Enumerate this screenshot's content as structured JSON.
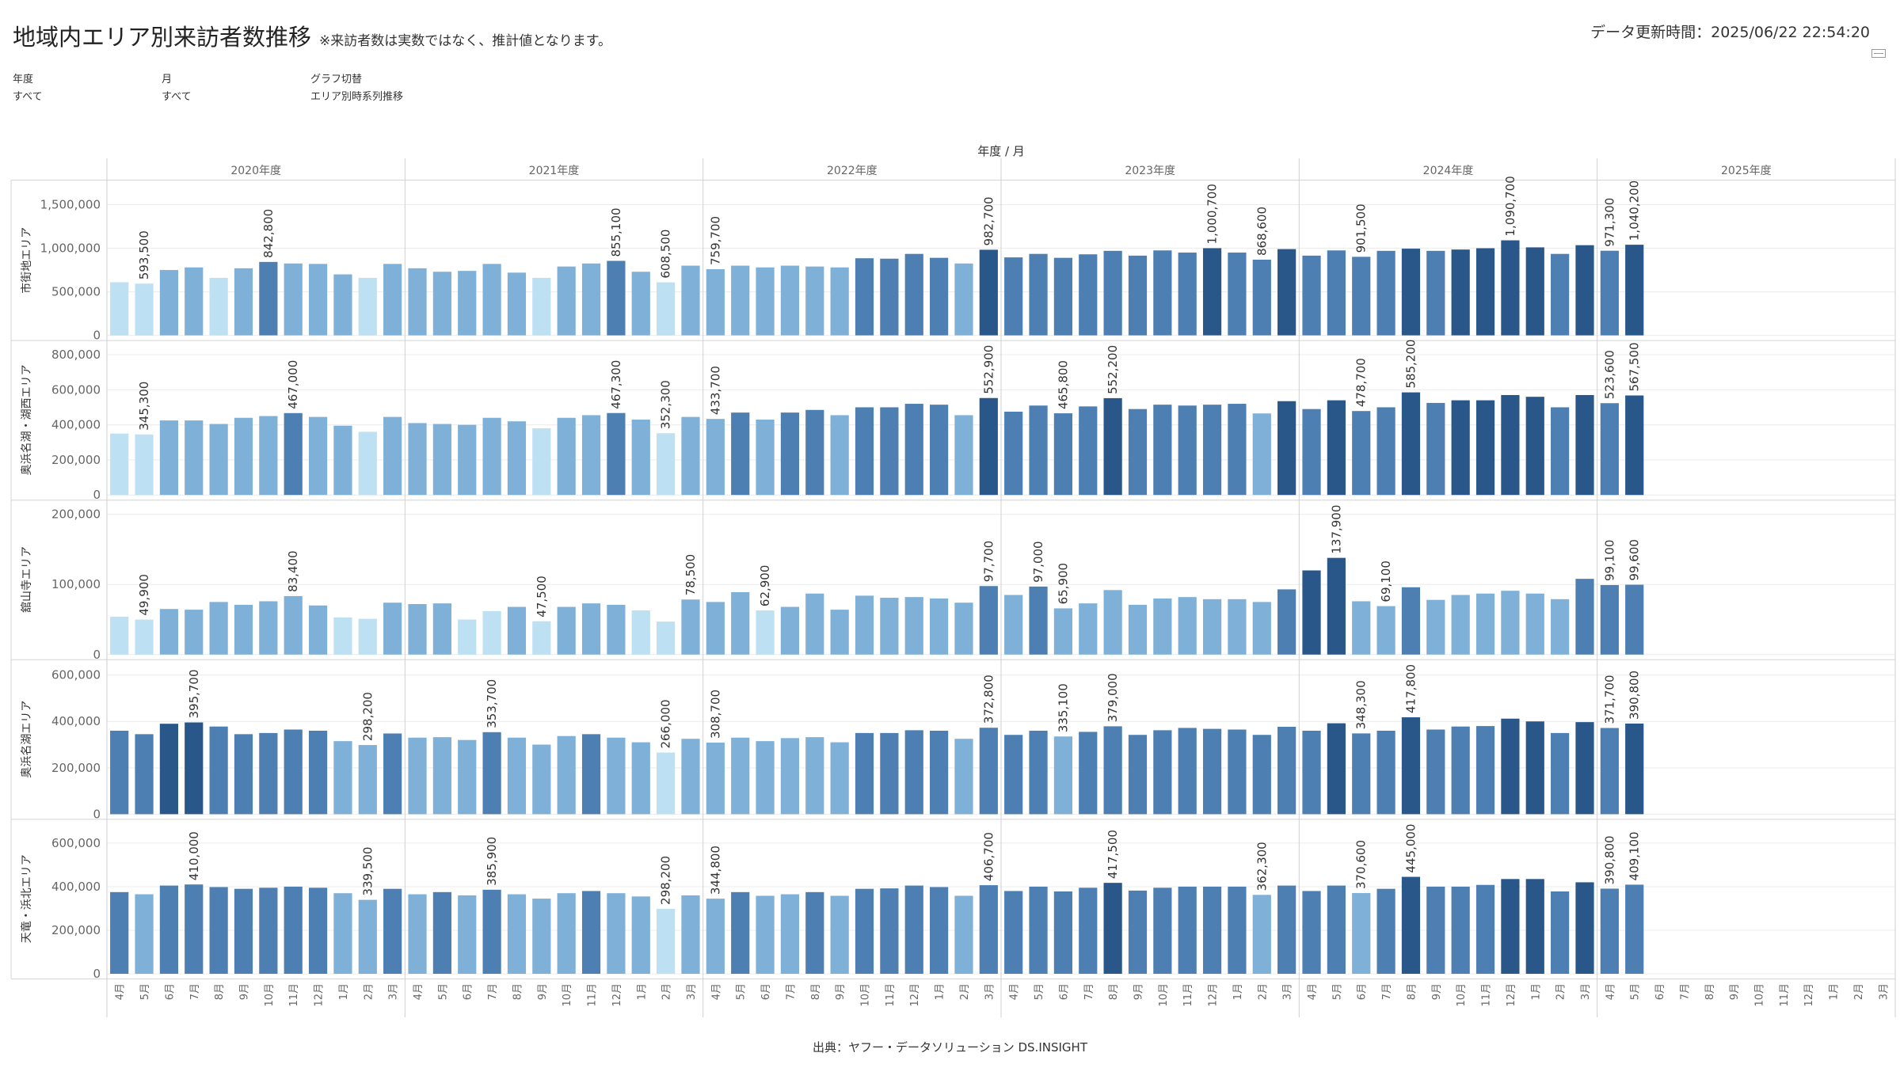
{
  "title": "地域内エリア別来訪者数推移",
  "title_note": "※来訪者数は実数ではなく、推計値となります。",
  "updated": "データ更新時間：2025/06/22 22:54:20",
  "filters": [
    {
      "label": "年度",
      "value": "すべて"
    },
    {
      "label": "月",
      "value": "すべて"
    },
    {
      "label": "グラフ切替",
      "value": "エリア別時系列推移"
    }
  ],
  "source": "出典：ヤフー・データソリューション DS.INSIGHT",
  "chart_data": {
    "type": "bar",
    "header": "年度 / 月",
    "fiscal_years": [
      "2020年度",
      "2021年度",
      "2022年度",
      "2023年度",
      "2024年度",
      "2025年度"
    ],
    "months": [
      "4月",
      "5月",
      "6月",
      "7月",
      "8月",
      "9月",
      "10月",
      "11月",
      "12月",
      "1月",
      "2月",
      "3月"
    ],
    "color_scale": [
      "#bde0f3",
      "#7fb0d7",
      "#4d7fb2",
      "#2a5789"
    ],
    "grid": true,
    "series": [
      {
        "name": "市街地エリア",
        "ylim": [
          0,
          1650000
        ],
        "ticks": [
          {
            "v": 0,
            "t": "0"
          },
          {
            "v": 500000,
            "t": "500,000"
          },
          {
            "v": 1000000,
            "t": "1,000,000"
          },
          {
            "v": 1500000,
            "t": "1,500,000"
          }
        ],
        "values": [
          610000,
          593500,
          750000,
          780000,
          660000,
          770000,
          842800,
          825000,
          820000,
          700000,
          660000,
          820000,
          770000,
          730000,
          740000,
          820000,
          720000,
          660000,
          790000,
          825000,
          855100,
          730000,
          608500,
          800000,
          759700,
          800000,
          780000,
          800000,
          790000,
          780000,
          885000,
          880000,
          935000,
          890000,
          825000,
          982700,
          895000,
          935000,
          890000,
          930000,
          970000,
          915000,
          975000,
          950000,
          1000700,
          950000,
          868600,
          990000,
          915000,
          975000,
          901500,
          970000,
          995000,
          970000,
          985000,
          1000000,
          1090700,
          1010000,
          935000,
          1035000,
          971300,
          1040200
        ],
        "labels": [
          {
            "i": 1,
            "t": "593,500"
          },
          {
            "i": 6,
            "t": "842,800"
          },
          {
            "i": 20,
            "t": "855,100"
          },
          {
            "i": 22,
            "t": "608,500"
          },
          {
            "i": 24,
            "t": "759,700"
          },
          {
            "i": 35,
            "t": "982,700"
          },
          {
            "i": 44,
            "t": "1,000,700"
          },
          {
            "i": 46,
            "t": "868,600"
          },
          {
            "i": 50,
            "t": "901,500"
          },
          {
            "i": 56,
            "t": "1,090,700"
          },
          {
            "i": 60,
            "t": "971,300"
          },
          {
            "i": 61,
            "t": "1,040,200"
          }
        ]
      },
      {
        "name": "奥浜名湖・湖西エリア",
        "ylim": [
          0,
          820000
        ],
        "ticks": [
          {
            "v": 0,
            "t": "0"
          },
          {
            "v": 200000,
            "t": "200,000"
          },
          {
            "v": 400000,
            "t": "400,000"
          },
          {
            "v": 600000,
            "t": "600,000"
          },
          {
            "v": 800000,
            "t": "800,000"
          }
        ],
        "values": [
          350000,
          345300,
          425000,
          425000,
          405000,
          440000,
          450000,
          467000,
          445000,
          395000,
          360000,
          445000,
          410000,
          405000,
          400000,
          440000,
          420000,
          380000,
          440000,
          455000,
          467300,
          430000,
          352300,
          445000,
          433700,
          470000,
          430000,
          470000,
          485000,
          455000,
          500000,
          500000,
          520000,
          515000,
          455000,
          552900,
          475000,
          510000,
          465800,
          505000,
          552200,
          490000,
          515000,
          510000,
          515000,
          520000,
          465000,
          535000,
          490000,
          540000,
          478700,
          500000,
          585200,
          525000,
          540000,
          540000,
          570000,
          560000,
          500000,
          570000,
          523600,
          567500
        ],
        "labels": [
          {
            "i": 1,
            "t": "345,300"
          },
          {
            "i": 7,
            "t": "467,000"
          },
          {
            "i": 20,
            "t": "467,300"
          },
          {
            "i": 22,
            "t": "352,300"
          },
          {
            "i": 24,
            "t": "433,700"
          },
          {
            "i": 35,
            "t": "552,900"
          },
          {
            "i": 38,
            "t": "465,800"
          },
          {
            "i": 40,
            "t": "552,200"
          },
          {
            "i": 50,
            "t": "478,700"
          },
          {
            "i": 52,
            "t": "585,200"
          },
          {
            "i": 60,
            "t": "523,600"
          },
          {
            "i": 61,
            "t": "567,500"
          }
        ]
      },
      {
        "name": "舘山寺エリア",
        "ylim": [
          0,
          205000
        ],
        "ticks": [
          {
            "v": 0,
            "t": "0"
          },
          {
            "v": 100000,
            "t": "100,000"
          },
          {
            "v": 200000,
            "t": "200,000"
          }
        ],
        "values": [
          54000,
          49900,
          65000,
          64000,
          75000,
          71000,
          76000,
          83400,
          70000,
          53000,
          51000,
          74000,
          72000,
          73000,
          50000,
          62000,
          68000,
          47500,
          68000,
          73000,
          71000,
          63000,
          47000,
          78500,
          75000,
          89000,
          62900,
          68000,
          87000,
          64000,
          84000,
          81000,
          82000,
          80000,
          74000,
          97700,
          85000,
          97000,
          65900,
          73000,
          92000,
          71000,
          80000,
          82000,
          79000,
          79000,
          75000,
          93000,
          120000,
          137900,
          76000,
          69100,
          96000,
          78000,
          85000,
          87000,
          91000,
          87000,
          79000,
          108000,
          99100,
          99600
        ],
        "labels": [
          {
            "i": 1,
            "t": "49,900"
          },
          {
            "i": 7,
            "t": "83,400"
          },
          {
            "i": 17,
            "t": "47,500"
          },
          {
            "i": 23,
            "t": "78,500"
          },
          {
            "i": 26,
            "t": "62,900"
          },
          {
            "i": 35,
            "t": "97,700"
          },
          {
            "i": 37,
            "t": "97,000"
          },
          {
            "i": 38,
            "t": "65,900"
          },
          {
            "i": 49,
            "t": "137,900"
          },
          {
            "i": 51,
            "t": "69,100"
          },
          {
            "i": 60,
            "t": "99,100"
          },
          {
            "i": 61,
            "t": "99,600"
          }
        ]
      },
      {
        "name": "奥浜名湖エリア",
        "ylim": [
          0,
          620000
        ],
        "ticks": [
          {
            "v": 0,
            "t": "0"
          },
          {
            "v": 200000,
            "t": "200,000"
          },
          {
            "v": 400000,
            "t": "400,000"
          },
          {
            "v": 600000,
            "t": "600,000"
          }
        ],
        "values": [
          360000,
          345000,
          390000,
          395700,
          378000,
          345000,
          350000,
          365000,
          360000,
          315000,
          298200,
          348000,
          330000,
          332000,
          320000,
          353700,
          330000,
          300000,
          337000,
          345000,
          330000,
          310000,
          266000,
          325000,
          308700,
          330000,
          315000,
          328000,
          332000,
          310000,
          350000,
          350000,
          362000,
          360000,
          325000,
          372800,
          342000,
          360000,
          335100,
          355000,
          379000,
          342000,
          362000,
          372000,
          368000,
          365000,
          342000,
          377000,
          360000,
          392000,
          348300,
          360000,
          417800,
          365000,
          378000,
          380000,
          412000,
          400000,
          350000,
          397000,
          371700,
          390800
        ],
        "labels": [
          {
            "i": 3,
            "t": "395,700"
          },
          {
            "i": 10,
            "t": "298,200"
          },
          {
            "i": 15,
            "t": "353,700"
          },
          {
            "i": 22,
            "t": "266,000"
          },
          {
            "i": 24,
            "t": "308,700"
          },
          {
            "i": 35,
            "t": "372,800"
          },
          {
            "i": 38,
            "t": "335,100"
          },
          {
            "i": 40,
            "t": "379,000"
          },
          {
            "i": 50,
            "t": "348,300"
          },
          {
            "i": 52,
            "t": "417,800"
          },
          {
            "i": 60,
            "t": "371,700"
          },
          {
            "i": 61,
            "t": "390,800"
          }
        ]
      },
      {
        "name": "天竜・浜北エリア",
        "ylim": [
          0,
          660000
        ],
        "ticks": [
          {
            "v": 0,
            "t": "0"
          },
          {
            "v": 200000,
            "t": "200,000"
          },
          {
            "v": 400000,
            "t": "400,000"
          },
          {
            "v": 600000,
            "t": "600,000"
          }
        ],
        "values": [
          375000,
          365000,
          405000,
          410000,
          398000,
          390000,
          395000,
          400000,
          395000,
          370000,
          339500,
          390000,
          365000,
          375000,
          360000,
          385900,
          365000,
          345000,
          370000,
          380000,
          370000,
          355000,
          298200,
          360000,
          344800,
          375000,
          358000,
          365000,
          375000,
          358000,
          390000,
          392000,
          405000,
          398000,
          358000,
          406700,
          380000,
          400000,
          378000,
          395000,
          417500,
          382000,
          395000,
          400000,
          400000,
          400000,
          362300,
          405000,
          380000,
          405000,
          370600,
          390000,
          445000,
          400000,
          400000,
          408000,
          435000,
          435000,
          378000,
          420000,
          390800,
          409100
        ],
        "labels": [
          {
            "i": 3,
            "t": "410,000"
          },
          {
            "i": 10,
            "t": "339,500"
          },
          {
            "i": 15,
            "t": "385,900"
          },
          {
            "i": 22,
            "t": "298,200"
          },
          {
            "i": 24,
            "t": "344,800"
          },
          {
            "i": 35,
            "t": "406,700"
          },
          {
            "i": 40,
            "t": "417,500"
          },
          {
            "i": 46,
            "t": "362,300"
          },
          {
            "i": 50,
            "t": "370,600"
          },
          {
            "i": 52,
            "t": "445,000"
          },
          {
            "i": 60,
            "t": "390,800"
          },
          {
            "i": 61,
            "t": "409,100"
          }
        ]
      }
    ]
  }
}
